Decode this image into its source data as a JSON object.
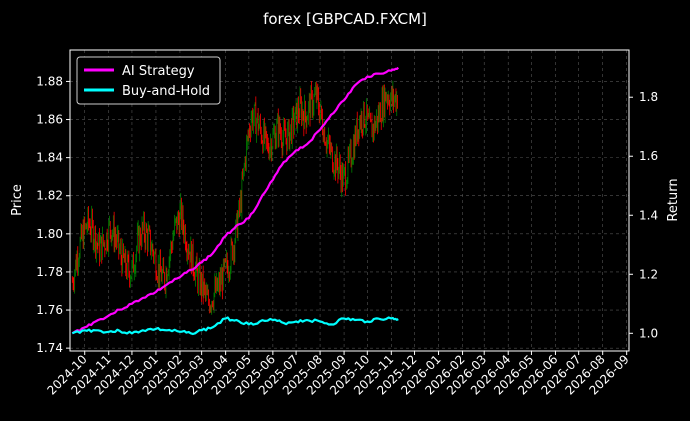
{
  "chart_data": {
    "type": "line",
    "title": "forex [GBPCAD.FXCM]",
    "ylabel_left": "Price",
    "ylabel_right": "Return",
    "legend_position": "top-left",
    "grid": true,
    "colors": {
      "background": "#000000",
      "ai_strategy": "#ff00ff",
      "buy_and_hold": "#00ffff",
      "candle_up": "#008000",
      "candle_down": "#ff0000"
    },
    "x_ticks": [
      "2024-10",
      "2024-11",
      "2024-12",
      "2025-01",
      "2025-02",
      "2025-03",
      "2025-04",
      "2025-05",
      "2025-06",
      "2025-07",
      "2025-08",
      "2025-09",
      "2025-10",
      "2025-11",
      "2025-12",
      "2026-01",
      "2026-02",
      "2026-03",
      "2026-04",
      "2026-05",
      "2026-06",
      "2026-07",
      "2026-08",
      "2026-09"
    ],
    "y_left": {
      "lim": [
        1.7385,
        1.8965
      ],
      "ticks": [
        "1.74",
        "1.76",
        "1.78",
        "1.80",
        "1.82",
        "1.84",
        "1.86",
        "1.88"
      ]
    },
    "y_right": {
      "lim": [
        0.94,
        1.96
      ],
      "ticks": [
        "1.0",
        "1.2",
        "1.4",
        "1.6",
        "1.8"
      ]
    },
    "price_series": {
      "name": "GBPCAD close",
      "points": [
        [
          "2024-09-15",
          1.775
        ],
        [
          "2024-09-22",
          1.79
        ],
        [
          "2024-09-29",
          1.8
        ],
        [
          "2024-10-06",
          1.806
        ],
        [
          "2024-10-13",
          1.8
        ],
        [
          "2024-10-20",
          1.792
        ],
        [
          "2024-10-27",
          1.796
        ],
        [
          "2024-11-03",
          1.804
        ],
        [
          "2024-11-10",
          1.798
        ],
        [
          "2024-11-17",
          1.788
        ],
        [
          "2024-11-24",
          1.782
        ],
        [
          "2024-12-01",
          1.78
        ],
        [
          "2024-12-08",
          1.795
        ],
        [
          "2024-12-15",
          1.802
        ],
        [
          "2024-12-22",
          1.798
        ],
        [
          "2024-12-29",
          1.79
        ],
        [
          "2025-01-05",
          1.78
        ],
        [
          "2025-01-12",
          1.776
        ],
        [
          "2025-01-19",
          1.79
        ],
        [
          "2025-01-26",
          1.804
        ],
        [
          "2025-02-02",
          1.81
        ],
        [
          "2025-02-09",
          1.798
        ],
        [
          "2025-02-16",
          1.788
        ],
        [
          "2025-02-23",
          1.778
        ],
        [
          "2025-03-02",
          1.772
        ],
        [
          "2025-03-09",
          1.764
        ],
        [
          "2025-03-16",
          1.768
        ],
        [
          "2025-03-23",
          1.772
        ],
        [
          "2025-03-30",
          1.779
        ],
        [
          "2025-04-06",
          1.786
        ],
        [
          "2025-04-13",
          1.798
        ],
        [
          "2025-04-20",
          1.815
        ],
        [
          "2025-04-27",
          1.842
        ],
        [
          "2025-05-04",
          1.862
        ],
        [
          "2025-05-11",
          1.86
        ],
        [
          "2025-05-18",
          1.852
        ],
        [
          "2025-05-25",
          1.845
        ],
        [
          "2025-06-01",
          1.85
        ],
        [
          "2025-06-08",
          1.856
        ],
        [
          "2025-06-15",
          1.85
        ],
        [
          "2025-06-22",
          1.852
        ],
        [
          "2025-06-29",
          1.86
        ],
        [
          "2025-07-06",
          1.866
        ],
        [
          "2025-07-13",
          1.862
        ],
        [
          "2025-07-20",
          1.868
        ],
        [
          "2025-07-27",
          1.872
        ],
        [
          "2025-08-03",
          1.86
        ],
        [
          "2025-08-10",
          1.848
        ],
        [
          "2025-08-17",
          1.84
        ],
        [
          "2025-08-24",
          1.836
        ],
        [
          "2025-08-31",
          1.828
        ],
        [
          "2025-09-07",
          1.836
        ],
        [
          "2025-09-14",
          1.848
        ],
        [
          "2025-09-21",
          1.86
        ],
        [
          "2025-09-28",
          1.862
        ],
        [
          "2025-10-05",
          1.854
        ],
        [
          "2025-10-12",
          1.858
        ],
        [
          "2025-10-19",
          1.866
        ],
        [
          "2025-10-26",
          1.874
        ],
        [
          "2025-11-02",
          1.87
        ],
        [
          "2025-11-09",
          1.872
        ]
      ]
    },
    "series": [
      {
        "name": "AI Strategy",
        "axis": "right",
        "points": [
          [
            "2024-09-15",
            1.0
          ],
          [
            "2024-10-01",
            1.02
          ],
          [
            "2024-10-15",
            1.04
          ],
          [
            "2024-11-01",
            1.06
          ],
          [
            "2024-11-15",
            1.08
          ],
          [
            "2024-12-01",
            1.1
          ],
          [
            "2024-12-15",
            1.12
          ],
          [
            "2025-01-01",
            1.14
          ],
          [
            "2025-01-15",
            1.165
          ],
          [
            "2025-02-01",
            1.19
          ],
          [
            "2025-02-15",
            1.215
          ],
          [
            "2025-03-01",
            1.24
          ],
          [
            "2025-03-15",
            1.27
          ],
          [
            "2025-04-01",
            1.33
          ],
          [
            "2025-04-15",
            1.365
          ],
          [
            "2025-05-01",
            1.39
          ],
          [
            "2025-05-15",
            1.45
          ],
          [
            "2025-06-01",
            1.52
          ],
          [
            "2025-06-15",
            1.58
          ],
          [
            "2025-07-01",
            1.62
          ],
          [
            "2025-07-15",
            1.64
          ],
          [
            "2025-08-01",
            1.69
          ],
          [
            "2025-08-15",
            1.74
          ],
          [
            "2025-09-01",
            1.79
          ],
          [
            "2025-09-15",
            1.84
          ],
          [
            "2025-10-01",
            1.87
          ],
          [
            "2025-10-15",
            1.88
          ],
          [
            "2025-11-01",
            1.89
          ],
          [
            "2025-11-10",
            1.9
          ]
        ]
      },
      {
        "name": "Buy-and-Hold",
        "axis": "right",
        "points": [
          [
            "2024-09-15",
            1.0
          ],
          [
            "2024-10-01",
            1.01
          ],
          [
            "2024-10-15",
            1.01
          ],
          [
            "2024-11-01",
            1.005
          ],
          [
            "2024-11-15",
            1.008
          ],
          [
            "2024-12-01",
            1.0
          ],
          [
            "2024-12-15",
            1.01
          ],
          [
            "2025-01-01",
            1.015
          ],
          [
            "2025-01-15",
            1.01
          ],
          [
            "2025-02-01",
            1.005
          ],
          [
            "2025-02-15",
            1.0
          ],
          [
            "2025-03-01",
            1.01
          ],
          [
            "2025-03-15",
            1.02
          ],
          [
            "2025-04-01",
            1.05
          ],
          [
            "2025-04-15",
            1.045
          ],
          [
            "2025-05-01",
            1.03
          ],
          [
            "2025-05-15",
            1.04
          ],
          [
            "2025-06-01",
            1.045
          ],
          [
            "2025-06-15",
            1.035
          ],
          [
            "2025-07-01",
            1.04
          ],
          [
            "2025-07-15",
            1.045
          ],
          [
            "2025-08-01",
            1.04
          ],
          [
            "2025-08-15",
            1.03
          ],
          [
            "2025-09-01",
            1.05
          ],
          [
            "2025-09-15",
            1.045
          ],
          [
            "2025-10-01",
            1.04
          ],
          [
            "2025-10-15",
            1.05
          ],
          [
            "2025-11-01",
            1.05
          ],
          [
            "2025-11-10",
            1.048
          ]
        ]
      }
    ]
  }
}
